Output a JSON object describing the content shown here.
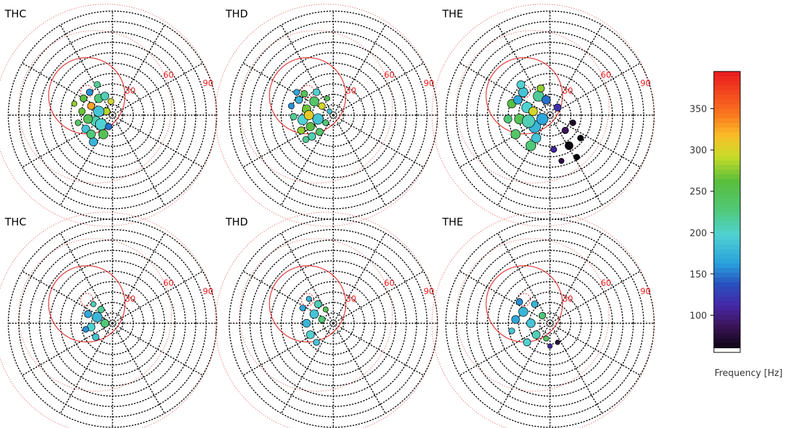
{
  "chart_data": [
    {
      "type": "scatter",
      "title": "THC",
      "ring_labels": [
        "30",
        "60",
        "90"
      ],
      "center": [
        0,
        0
      ],
      "points": [
        [
          -28,
          12,
          330,
          2.2
        ],
        [
          -22,
          -8,
          210,
          3.0
        ],
        [
          -18,
          22,
          230,
          2.6
        ],
        [
          -35,
          -18,
          190,
          2.4
        ],
        [
          -12,
          -25,
          250,
          2.8
        ],
        [
          -40,
          5,
          270,
          2.0
        ],
        [
          -25,
          -35,
          180,
          2.5
        ],
        [
          -8,
          5,
          290,
          2.2
        ],
        [
          -30,
          30,
          160,
          2.0
        ],
        [
          -15,
          -12,
          200,
          3.4
        ],
        [
          -45,
          -10,
          240,
          1.8
        ],
        [
          -20,
          40,
          220,
          1.9
        ],
        [
          -5,
          -15,
          150,
          2.0
        ],
        [
          -38,
          22,
          260,
          2.1
        ],
        [
          -10,
          25,
          210,
          2.4
        ],
        [
          -28,
          -25,
          230,
          2.6
        ],
        [
          -50,
          15,
          280,
          1.6
        ],
        [
          -18,
          5,
          190,
          3.2
        ],
        [
          -32,
          -5,
          250,
          2.7
        ],
        [
          -2,
          18,
          300,
          1.8
        ]
      ],
      "ring_label_colors": "#ee2222"
    },
    {
      "type": "scatter",
      "title": "THD",
      "ring_labels": [
        "30",
        "60",
        "90"
      ],
      "points": [
        [
          -35,
          8,
          270,
          2.6
        ],
        [
          -40,
          -6,
          200,
          3.0
        ],
        [
          -25,
          18,
          240,
          2.8
        ],
        [
          -45,
          20,
          180,
          2.2
        ],
        [
          -30,
          -15,
          260,
          2.5
        ],
        [
          -52,
          -2,
          220,
          2.0
        ],
        [
          -20,
          -5,
          190,
          3.2
        ],
        [
          -38,
          28,
          250,
          2.0
        ],
        [
          -15,
          12,
          300,
          2.0
        ],
        [
          -28,
          -28,
          210,
          2.3
        ],
        [
          -55,
          12,
          160,
          1.8
        ],
        [
          -10,
          -10,
          230,
          1.8
        ],
        [
          -42,
          -20,
          280,
          2.2
        ],
        [
          -22,
          30,
          200,
          2.1
        ],
        [
          -8,
          22,
          250,
          1.6
        ],
        [
          -48,
          30,
          170,
          1.8
        ],
        [
          -32,
          0,
          310,
          2.8
        ],
        [
          -18,
          -22,
          240,
          2.2
        ],
        [
          -5,
          5,
          190,
          1.5
        ],
        [
          -36,
          -32,
          220,
          1.9
        ]
      ]
    },
    {
      "type": "scatter",
      "title": "THE",
      "ring_labels": [
        "30",
        "60",
        "90"
      ],
      "points": [
        [
          -30,
          10,
          200,
          3.2
        ],
        [
          -20,
          -15,
          180,
          3.6
        ],
        [
          -40,
          -5,
          250,
          3.0
        ],
        [
          -15,
          25,
          220,
          3.2
        ],
        [
          -35,
          30,
          190,
          2.8
        ],
        [
          -45,
          -25,
          240,
          2.8
        ],
        [
          -10,
          -5,
          170,
          3.4
        ],
        [
          -25,
          -40,
          230,
          3.0
        ],
        [
          -50,
          15,
          260,
          2.6
        ],
        [
          -5,
          20,
          150,
          2.6
        ],
        [
          -28,
          -8,
          210,
          3.8
        ],
        [
          -38,
          40,
          200,
          2.4
        ],
        [
          -18,
          -30,
          190,
          2.8
        ],
        [
          -55,
          -5,
          230,
          2.4
        ],
        [
          -12,
          35,
          280,
          2.2
        ],
        [
          10,
          10,
          120,
          2.2
        ],
        [
          20,
          -20,
          90,
          2.0
        ],
        [
          30,
          -10,
          70,
          1.8
        ],
        [
          25,
          -40,
          60,
          2.4
        ],
        [
          35,
          -55,
          60,
          1.8
        ],
        [
          15,
          -60,
          80,
          1.6
        ],
        [
          40,
          -30,
          60,
          1.8
        ],
        [
          5,
          -45,
          110,
          1.8
        ],
        [
          -22,
          5,
          300,
          2.6
        ],
        [
          -42,
          20,
          170,
          2.6
        ]
      ]
    },
    {
      "type": "scatter",
      "title": "THC",
      "ring_labels": [
        "30",
        "60",
        "90"
      ],
      "points": [
        [
          -20,
          8,
          180,
          3.0
        ],
        [
          -28,
          -5,
          200,
          2.4
        ],
        [
          -15,
          18,
          220,
          2.0
        ],
        [
          -32,
          12,
          170,
          2.2
        ],
        [
          -22,
          -18,
          190,
          2.0
        ],
        [
          -10,
          0,
          230,
          2.4
        ],
        [
          -35,
          -8,
          160,
          1.8
        ],
        [
          -25,
          25,
          210,
          1.6
        ]
      ]
    },
    {
      "type": "scatter",
      "title": "THD",
      "ring_labels": [
        "30",
        "60",
        "90"
      ],
      "points": [
        [
          -25,
          12,
          190,
          2.6
        ],
        [
          -35,
          0,
          180,
          2.4
        ],
        [
          -20,
          25,
          210,
          2.2
        ],
        [
          -30,
          -15,
          200,
          2.4
        ],
        [
          -15,
          5,
          230,
          2.0
        ],
        [
          -40,
          20,
          170,
          1.8
        ],
        [
          -22,
          -25,
          190,
          1.9
        ],
        [
          -10,
          18,
          250,
          1.6
        ],
        [
          -32,
          32,
          180,
          1.6
        ]
      ]
    },
    {
      "type": "scatter",
      "title": "THE",
      "ring_labels": [
        "30",
        "60",
        "90"
      ],
      "points": [
        [
          -35,
          15,
          180,
          2.8
        ],
        [
          -25,
          0,
          190,
          2.6
        ],
        [
          -45,
          5,
          170,
          2.4
        ],
        [
          -18,
          -15,
          210,
          2.4
        ],
        [
          -30,
          -25,
          200,
          2.2
        ],
        [
          -40,
          28,
          160,
          2.0
        ],
        [
          -10,
          10,
          230,
          2.0
        ],
        [
          -20,
          25,
          180,
          2.0
        ],
        [
          -50,
          -10,
          190,
          1.8
        ],
        [
          -5,
          -20,
          240,
          1.6
        ],
        [
          0,
          -30,
          110,
          1.4
        ],
        [
          10,
          -25,
          80,
          1.4
        ]
      ]
    }
  ],
  "colorbar": {
    "title": "Frequency [Hz]",
    "ticks": [
      "350",
      "300",
      "250",
      "200",
      "150",
      "100"
    ],
    "tick_values": [
      350,
      300,
      250,
      200,
      150,
      100
    ],
    "range": [
      55,
      395
    ]
  },
  "colors": {
    "ring_label": "#ee2222",
    "grid": "#000000",
    "red_rings": "#dd2222"
  }
}
